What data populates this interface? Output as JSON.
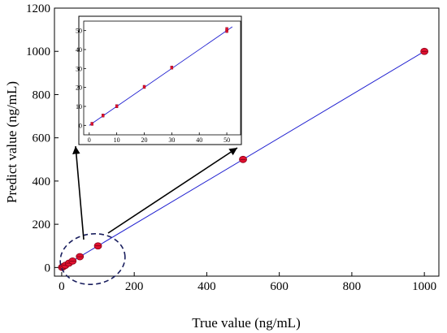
{
  "chart_data": {
    "type": "scatter",
    "xlabel": "True value (ng/mL)",
    "ylabel": "Predict value (ng/mL)",
    "xlim": [
      -20,
      1040
    ],
    "ylim": [
      -40,
      1200
    ],
    "x_ticks": [
      0,
      200,
      400,
      600,
      800,
      1000
    ],
    "y_ticks": [
      0,
      200,
      400,
      600,
      800,
      1000,
      1200
    ],
    "grid": false,
    "legend": "none",
    "series": [
      {
        "points": [
          {
            "x": 1,
            "y": 1
          },
          {
            "x": 5,
            "y": 5
          },
          {
            "x": 10,
            "y": 10
          },
          {
            "x": 20,
            "y": 20
          },
          {
            "x": 30,
            "y": 30
          },
          {
            "x": 50,
            "y": 50
          },
          {
            "x": 100,
            "y": 100
          },
          {
            "x": 500,
            "y": 500
          },
          {
            "x": 1000,
            "y": 1000
          }
        ],
        "fit_line": {
          "slope": 1.0,
          "intercept": 0.0
        },
        "marker_color": "#e0102f",
        "line_color": "#1f1fd0"
      }
    ],
    "inset": {
      "xlim": [
        -2,
        55
      ],
      "ylim": [
        -5,
        55
      ],
      "x_ticks": [
        0,
        10,
        20,
        30,
        40,
        50
      ],
      "y_ticks": [
        0,
        10,
        20,
        30,
        40,
        50
      ],
      "points": [
        {
          "x": 1,
          "y": 0.8
        },
        {
          "x": 5,
          "y": 5.2
        },
        {
          "x": 10,
          "y": 10.1
        },
        {
          "x": 20,
          "y": 20.3
        },
        {
          "x": 30,
          "y": 30.5
        },
        {
          "x": 50,
          "y": 49.8
        },
        {
          "x": 50,
          "y": 50.8
        }
      ],
      "fit_line": {
        "slope": 1.0,
        "intercept": 0.0
      },
      "zoom_region_note": "dashed ellipse highlights 0–100 ng/mL region"
    }
  }
}
